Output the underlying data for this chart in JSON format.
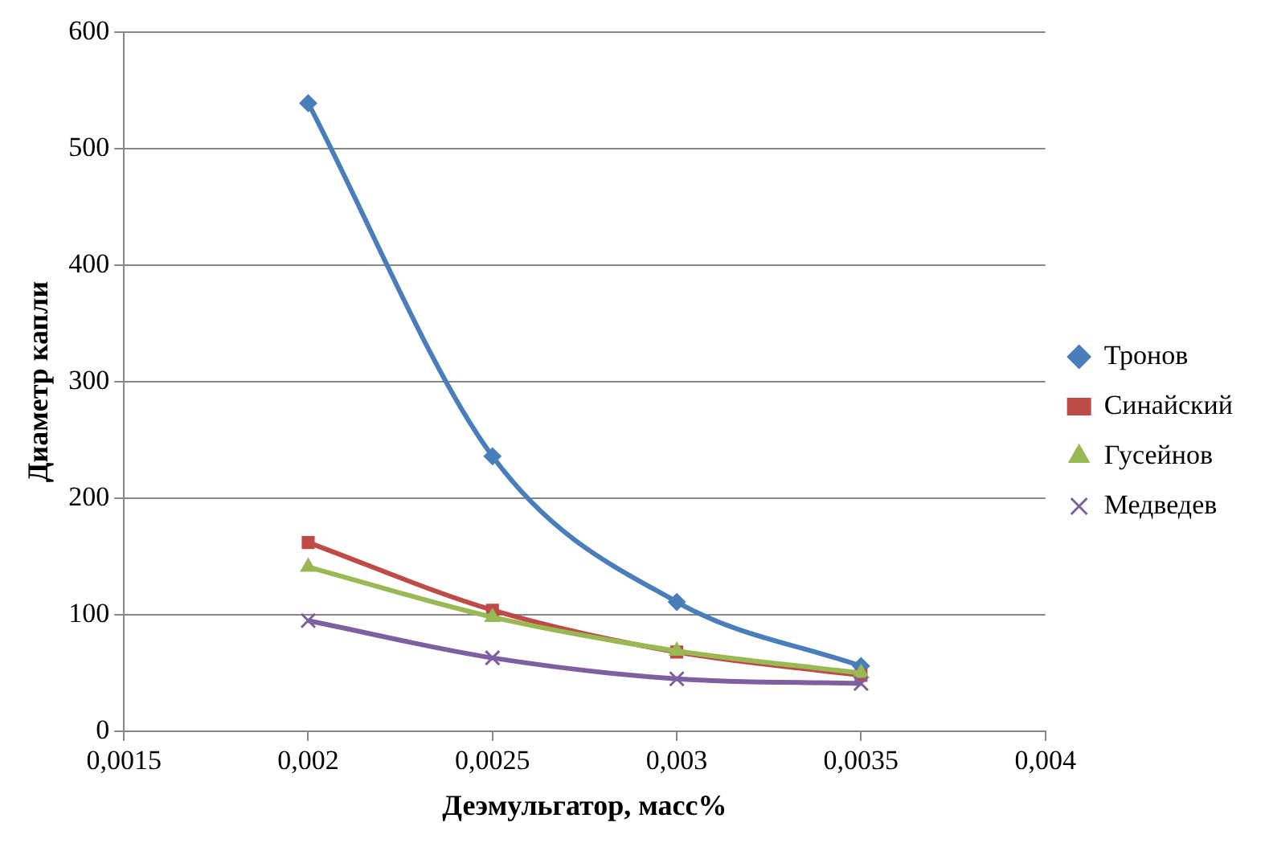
{
  "chart_data": {
    "type": "line",
    "xlabel": "Деэмульгатор, масс%",
    "ylabel": "Диаметр капли",
    "x": [
      0.002,
      0.0025,
      0.003,
      0.0035
    ],
    "xlim": [
      0.0015,
      0.004
    ],
    "xticks": [
      {
        "value": 0.0015,
        "label": "0,0015"
      },
      {
        "value": 0.002,
        "label": "0,002"
      },
      {
        "value": 0.0025,
        "label": "0,0025"
      },
      {
        "value": 0.003,
        "label": "0,003"
      },
      {
        "value": 0.0035,
        "label": "0,0035"
      },
      {
        "value": 0.004,
        "label": "0,004"
      }
    ],
    "ylim": [
      0,
      600
    ],
    "yticks": [
      0,
      100,
      200,
      300,
      400,
      500,
      600
    ],
    "grid": "y",
    "legend": "right",
    "series": [
      {
        "name": "Тронов",
        "color": "#4a7ebb",
        "marker": "diamond",
        "values": [
          539,
          236,
          111,
          56
        ]
      },
      {
        "name": "Синайский",
        "color": "#be4b48",
        "marker": "square",
        "values": [
          162,
          104,
          68,
          48
        ]
      },
      {
        "name": "Гусейнов",
        "color": "#98b954",
        "marker": "triangle",
        "values": [
          141,
          98,
          69,
          50
        ]
      },
      {
        "name": "Медведев",
        "color": "#7d60a0",
        "marker": "cross",
        "values": [
          95,
          63,
          45,
          41
        ]
      }
    ]
  }
}
